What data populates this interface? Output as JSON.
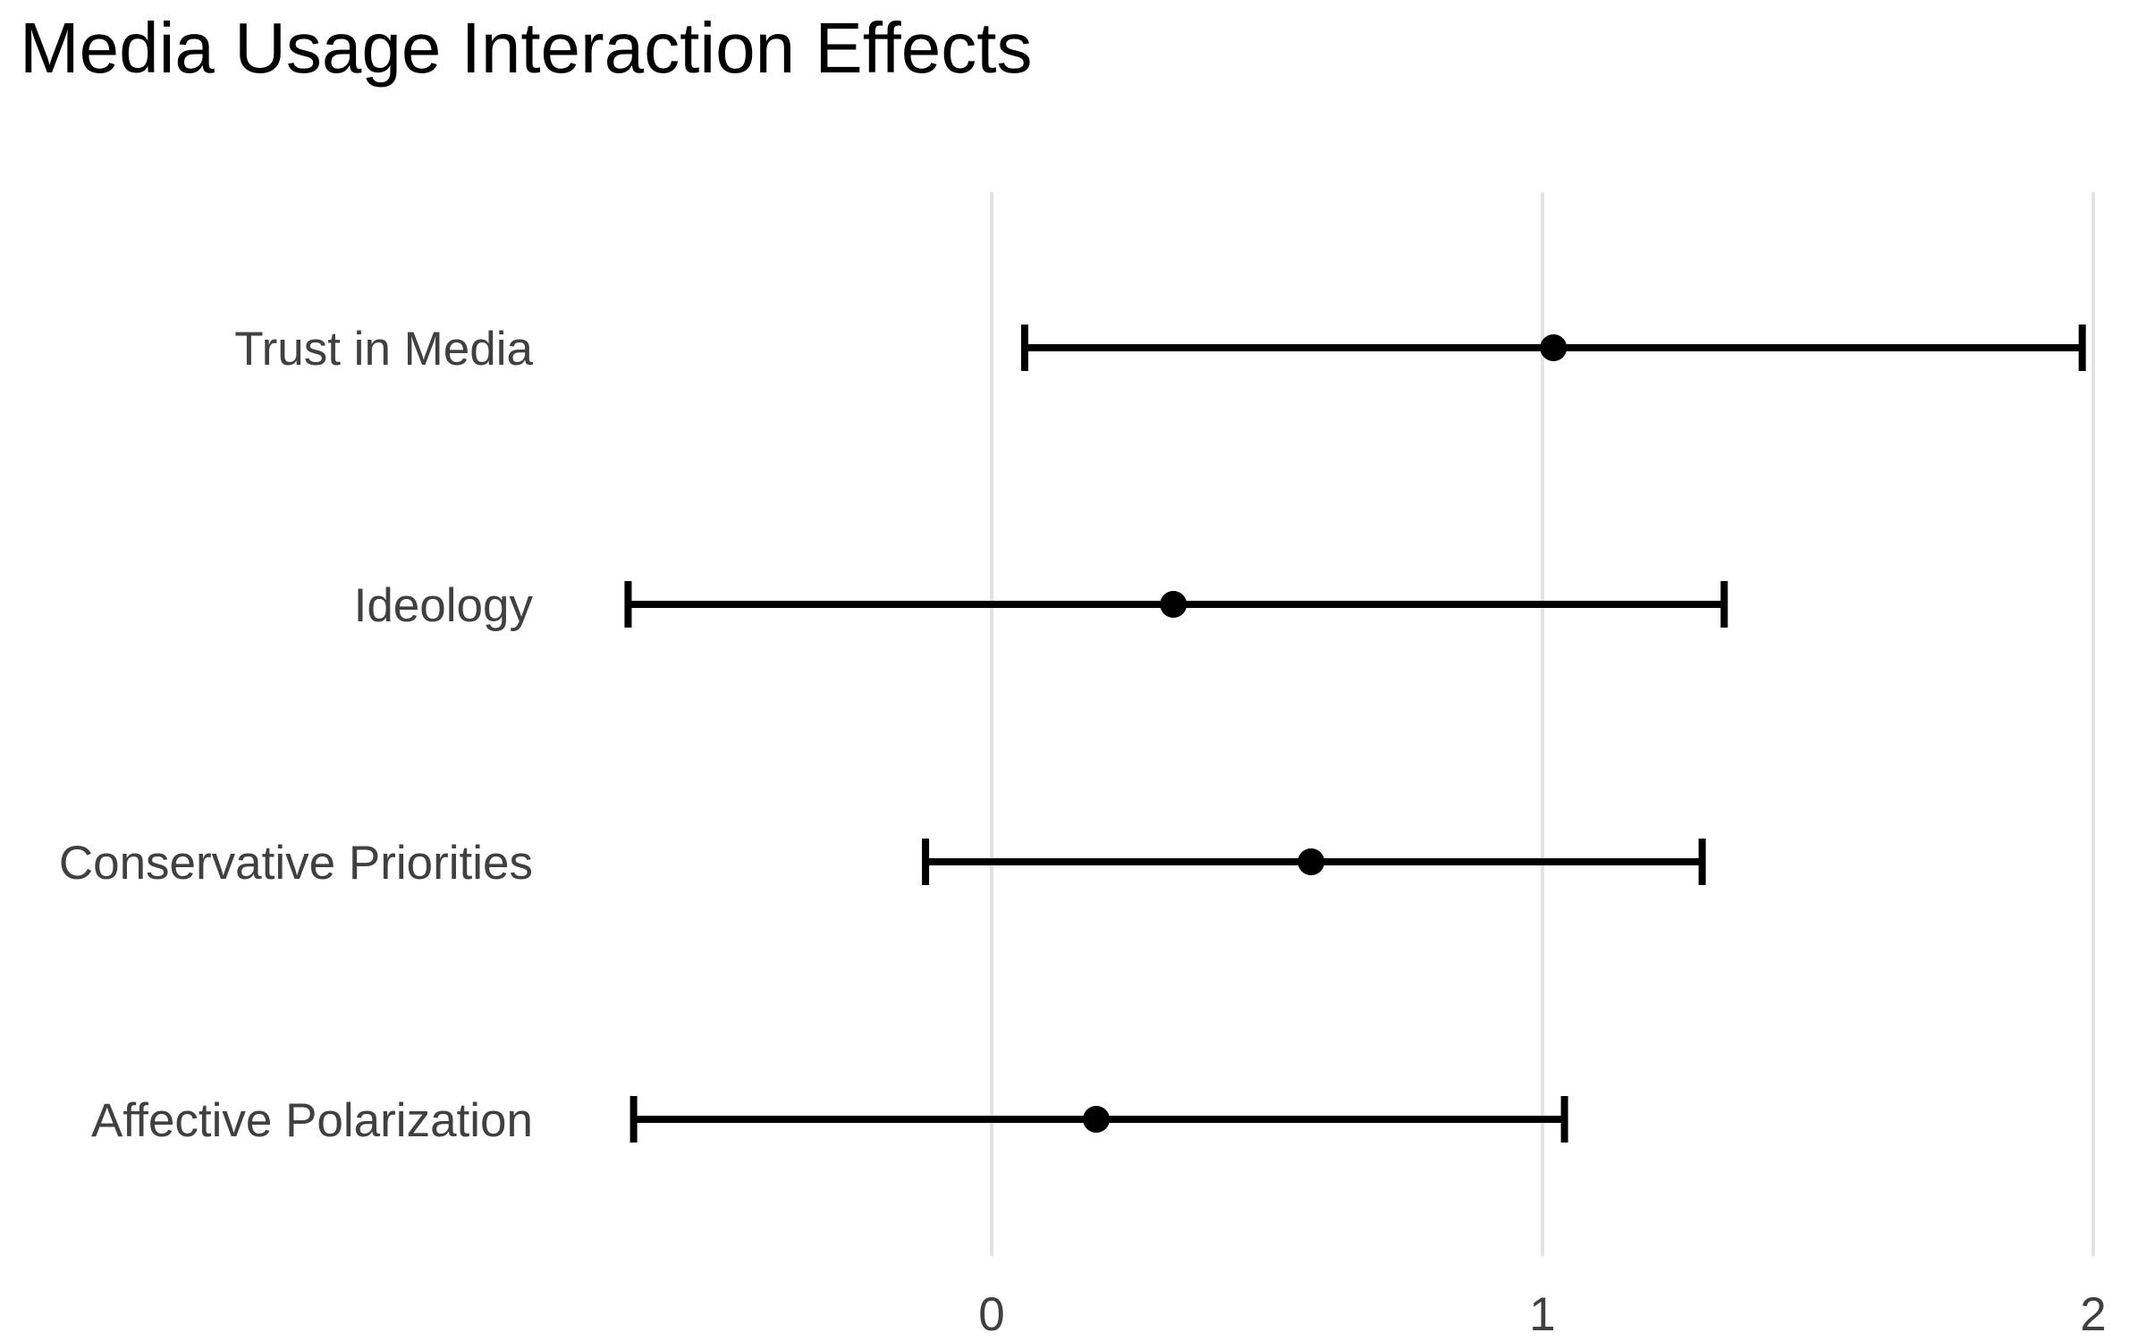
{
  "chart_data": {
    "type": "scatter",
    "title": "Media Usage Interaction Effects",
    "xlabel": "",
    "ylabel": "",
    "xlim": [
      -0.95,
      2.0
    ],
    "x_ticks": [
      "0",
      "1",
      "2"
    ],
    "x_tick_values": [
      0,
      1,
      2
    ],
    "grid": "vertical major gridlines only",
    "categories": [
      "Trust in Media",
      "Ideology",
      "Conservative Priorities",
      "Affective Polarization"
    ],
    "series": [
      {
        "estimates": [
          1.02,
          0.33,
          0.58,
          0.19
        ],
        "ci_lower": [
          0.06,
          -0.66,
          -0.12,
          -0.65
        ],
        "ci_upper": [
          1.98,
          1.33,
          1.29,
          1.04
        ]
      }
    ],
    "colors": {
      "marks": "#000000",
      "grid": "#e3e3e3",
      "text": "#404040",
      "title": "#000000"
    }
  }
}
